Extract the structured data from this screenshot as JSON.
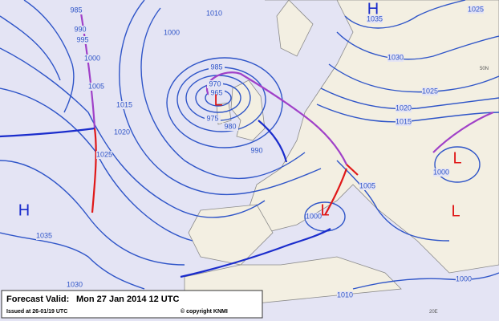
{
  "footer": {
    "valid_label": "Forecast Valid:",
    "valid_time": "Mon 27 Jan 2014 12 UTC",
    "issued": "Issued at 26-01/19 UTC",
    "copyright": "© copyright KNMI"
  },
  "pressure_centers": [
    {
      "label": "H"
    },
    {
      "label": "H"
    },
    {
      "label": "L"
    },
    {
      "label": "L"
    },
    {
      "label": "L"
    },
    {
      "label": "L"
    }
  ],
  "isobar_labels": [
    "985",
    "990",
    "995",
    "1000",
    "1005",
    "1010",
    "1000",
    "985",
    "970",
    "965",
    "975",
    "980",
    "990",
    "1015",
    "1020",
    "1025",
    "1035",
    "1030",
    "1035",
    "1030",
    "1025",
    "1020",
    "1015",
    "1025",
    "1005",
    "1000",
    "1000",
    "1000",
    "1010"
  ],
  "grid_labels": [
    "50N",
    "20E"
  ]
}
